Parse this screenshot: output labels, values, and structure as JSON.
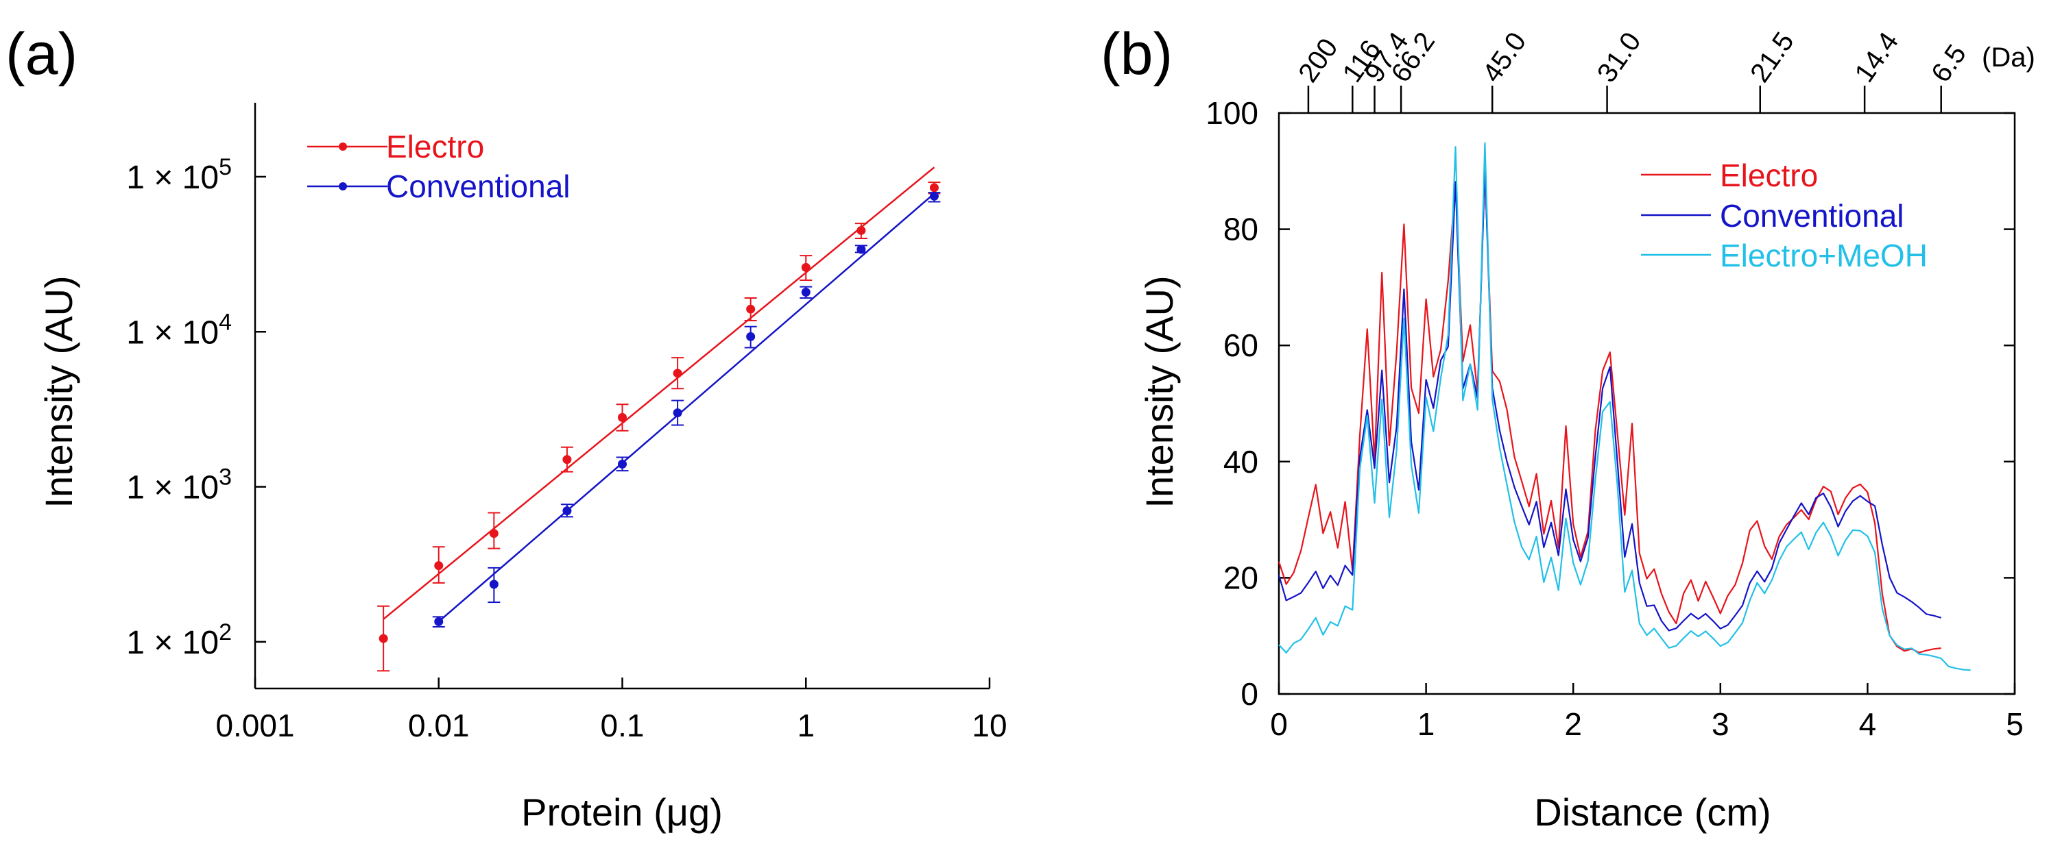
{
  "chart_data": [
    {
      "type": "scatter",
      "panel_label": "(a)",
      "title": "",
      "xlabel": "Protein (μg)",
      "ylabel": "Intensity (AU)",
      "xscale": "log",
      "yscale": "log",
      "xlim": [
        0.001,
        10
      ],
      "ylim": [
        50,
        300000
      ],
      "x_ticks": [
        {
          "value": 0.001,
          "label": "0.001"
        },
        {
          "value": 0.01,
          "label": "0.01"
        },
        {
          "value": 0.1,
          "label": "0.1"
        },
        {
          "value": 1,
          "label": "1"
        },
        {
          "value": 10,
          "label": "10"
        }
      ],
      "y_ticks": [
        {
          "value": 100,
          "mant": "1",
          "times": "×",
          "base": "10",
          "exp": "2"
        },
        {
          "value": 1000,
          "mant": "1",
          "times": "×",
          "base": "10",
          "exp": "3"
        },
        {
          "value": 10000,
          "mant": "1",
          "times": "×",
          "base": "10",
          "exp": "4"
        },
        {
          "value": 100000,
          "mant": "1",
          "times": "×",
          "base": "10",
          "exp": "5"
        }
      ],
      "legend_position": "top-left",
      "series": [
        {
          "name": "Electro",
          "color": "#e8141c",
          "x": [
            0.005,
            0.01,
            0.02,
            0.05,
            0.1,
            0.2,
            0.5,
            1,
            2,
            5
          ],
          "y": [
            105,
            310,
            500,
            1500,
            2800,
            5400,
            14000,
            26000,
            45000,
            85000
          ],
          "err_low": [
            65,
            240,
            400,
            1250,
            2300,
            4300,
            11800,
            21500,
            40000,
            78000
          ],
          "err_high": [
            170,
            410,
            680,
            1800,
            3400,
            6800,
            16500,
            31000,
            50000,
            92000
          ],
          "fit_x": [
            0.005,
            5
          ],
          "fit_y": [
            140,
            115000
          ]
        },
        {
          "name": "Conventional",
          "color": "#1414c8",
          "x": [
            0.01,
            0.02,
            0.05,
            0.1,
            0.2,
            0.5,
            1,
            2,
            5
          ],
          "y": [
            135,
            235,
            700,
            1400,
            3000,
            9300,
            18000,
            34000,
            75000
          ],
          "err_low": [
            125,
            180,
            640,
            1270,
            2500,
            7900,
            16500,
            32500,
            69000
          ],
          "err_high": [
            145,
            300,
            770,
            1550,
            3600,
            10800,
            19500,
            36000,
            79000
          ],
          "fit_x": [
            0.01,
            5
          ],
          "fit_y": [
            135,
            78000
          ]
        }
      ]
    },
    {
      "type": "line",
      "panel_label": "(b)",
      "title": "",
      "xlabel": "Distance (cm)",
      "ylabel": "Intensity (AU)",
      "xlim": [
        0,
        5
      ],
      "ylim": [
        0,
        100
      ],
      "x_ticks": [
        0,
        1,
        2,
        3,
        4,
        5
      ],
      "y_ticks": [
        0,
        20,
        40,
        60,
        80,
        100
      ],
      "top_axis": {
        "unit_label": "(Da)",
        "markers": [
          {
            "pos": 0.2,
            "label": "200"
          },
          {
            "pos": 0.5,
            "label": "116"
          },
          {
            "pos": 0.65,
            "label": "97.4"
          },
          {
            "pos": 0.83,
            "label": "66.2"
          },
          {
            "pos": 1.45,
            "label": "45.0"
          },
          {
            "pos": 2.23,
            "label": "31.0"
          },
          {
            "pos": 3.27,
            "label": "21.5"
          },
          {
            "pos": 3.98,
            "label": "14.4"
          },
          {
            "pos": 4.5,
            "label": "6.5"
          }
        ]
      },
      "legend_position": "top-right",
      "series": [
        {
          "name": "Electro",
          "color": "#e8141c",
          "x": [
            0,
            0.05,
            0.1,
            0.15,
            0.2,
            0.25,
            0.3,
            0.35,
            0.4,
            0.45,
            0.5,
            0.55,
            0.6,
            0.65,
            0.7,
            0.75,
            0.8,
            0.85,
            0.9,
            0.95,
            1.0,
            1.05,
            1.1,
            1.15,
            1.2,
            1.25,
            1.3,
            1.35,
            1.4,
            1.45,
            1.5,
            1.55,
            1.6,
            1.65,
            1.7,
            1.75,
            1.8,
            1.85,
            1.9,
            1.95,
            2.0,
            2.05,
            2.1,
            2.15,
            2.2,
            2.25,
            2.3,
            2.35,
            2.4,
            2.45,
            2.5,
            2.55,
            2.6,
            2.65,
            2.7,
            2.75,
            2.8,
            2.85,
            2.9,
            2.95,
            3.0,
            3.05,
            3.1,
            3.15,
            3.2,
            3.25,
            3.3,
            3.35,
            3.4,
            3.45,
            3.5,
            3.55,
            3.6,
            3.65,
            3.7,
            3.75,
            3.8,
            3.85,
            3.9,
            3.95,
            4.0,
            4.05,
            4.1,
            4.15,
            4.2,
            4.25,
            4.3,
            4.35,
            4.4,
            4.45,
            4.5
          ],
          "y": [
            22,
            18,
            20,
            24,
            30,
            36,
            28,
            32,
            26,
            34,
            22,
            45,
            63,
            40,
            72,
            42,
            58,
            80,
            52,
            48,
            68,
            55,
            60,
            72,
            89,
            58,
            64,
            52,
            90,
            55,
            53,
            48,
            40,
            36,
            32,
            38,
            28,
            34,
            26,
            47,
            30,
            24,
            28,
            45,
            55,
            58,
            44,
            30,
            46,
            24,
            20,
            22,
            18,
            15,
            13,
            18,
            20,
            16,
            19,
            16,
            13,
            16,
            18,
            22,
            28,
            30,
            26,
            24,
            28,
            30,
            31,
            32,
            30,
            33,
            35,
            34,
            30,
            33,
            35,
            36,
            35,
            30,
            18,
            11,
            9,
            8,
            8,
            7,
            7,
            7,
            7
          ]
        },
        {
          "name": "Conventional",
          "color": "#1414c8",
          "x": [
            0,
            0.05,
            0.1,
            0.15,
            0.2,
            0.25,
            0.3,
            0.35,
            0.4,
            0.45,
            0.5,
            0.55,
            0.6,
            0.65,
            0.7,
            0.75,
            0.8,
            0.85,
            0.9,
            0.95,
            1.0,
            1.05,
            1.1,
            1.15,
            1.2,
            1.25,
            1.3,
            1.35,
            1.4,
            1.45,
            1.5,
            1.55,
            1.6,
            1.65,
            1.7,
            1.75,
            1.8,
            1.85,
            1.9,
            1.95,
            2.0,
            2.05,
            2.1,
            2.15,
            2.2,
            2.25,
            2.3,
            2.35,
            2.4,
            2.45,
            2.5,
            2.55,
            2.6,
            2.65,
            2.7,
            2.75,
            2.8,
            2.85,
            2.9,
            2.95,
            3.0,
            3.05,
            3.1,
            3.15,
            3.2,
            3.25,
            3.3,
            3.35,
            3.4,
            3.45,
            3.5,
            3.55,
            3.6,
            3.65,
            3.7,
            3.75,
            3.8,
            3.85,
            3.9,
            3.95,
            4.0,
            4.05,
            4.1,
            4.15,
            4.2,
            4.25,
            4.3,
            4.35,
            4.4,
            4.45,
            4.5
          ],
          "y": [
            20,
            16,
            17,
            18,
            20,
            22,
            19,
            21,
            19,
            22,
            20,
            40,
            48,
            38,
            55,
            36,
            46,
            70,
            44,
            36,
            55,
            50,
            58,
            60,
            88,
            52,
            56,
            50,
            90,
            52,
            45,
            40,
            36,
            33,
            30,
            34,
            26,
            30,
            24,
            35,
            26,
            22,
            26,
            40,
            52,
            56,
            40,
            24,
            30,
            20,
            16,
            16,
            13,
            11,
            11,
            12,
            13,
            12,
            13,
            12,
            11,
            12,
            14,
            16,
            20,
            22,
            20,
            22,
            26,
            28,
            30,
            32,
            30,
            33,
            34,
            32,
            29,
            32,
            34,
            35,
            34,
            33,
            26,
            20,
            17,
            16,
            15,
            14,
            13,
            13,
            13
          ]
        },
        {
          "name": "Electro+MeOH",
          "color": "#22c0e8",
          "x": [
            0,
            0.05,
            0.1,
            0.15,
            0.2,
            0.25,
            0.3,
            0.35,
            0.4,
            0.45,
            0.5,
            0.55,
            0.6,
            0.65,
            0.7,
            0.75,
            0.8,
            0.85,
            0.9,
            0.95,
            1.0,
            1.05,
            1.1,
            1.15,
            1.2,
            1.25,
            1.3,
            1.35,
            1.4,
            1.45,
            1.5,
            1.55,
            1.6,
            1.65,
            1.7,
            1.75,
            1.8,
            1.85,
            1.9,
            1.95,
            2.0,
            2.05,
            2.1,
            2.15,
            2.2,
            2.25,
            2.3,
            2.35,
            2.4,
            2.45,
            2.5,
            2.55,
            2.6,
            2.65,
            2.7,
            2.75,
            2.8,
            2.85,
            2.9,
            2.95,
            3.0,
            3.05,
            3.1,
            3.15,
            3.2,
            3.25,
            3.3,
            3.35,
            3.4,
            3.45,
            3.5,
            3.55,
            3.6,
            3.65,
            3.7,
            3.75,
            3.8,
            3.85,
            3.9,
            3.95,
            4.0,
            4.05,
            4.1,
            4.15,
            4.2,
            4.25,
            4.3,
            4.35,
            4.4,
            4.45,
            4.5,
            4.55,
            4.6,
            4.65,
            4.7
          ],
          "y": [
            8,
            7,
            9,
            10,
            12,
            14,
            11,
            13,
            12,
            15,
            14,
            38,
            47,
            32,
            50,
            30,
            42,
            65,
            40,
            32,
            52,
            46,
            55,
            62,
            94,
            50,
            56,
            48,
            94,
            50,
            42,
            36,
            30,
            26,
            24,
            28,
            20,
            24,
            18,
            30,
            22,
            18,
            22,
            36,
            48,
            50,
            36,
            18,
            22,
            13,
            11,
            12,
            10,
            8,
            8,
            9,
            10,
            9,
            10,
            9,
            8,
            9,
            11,
            13,
            17,
            20,
            18,
            20,
            23,
            25,
            26,
            27,
            24,
            27,
            29,
            27,
            24,
            27,
            29,
            29,
            28,
            25,
            15,
            10,
            8,
            7,
            7,
            6,
            6,
            6,
            6,
            5,
            5,
            5,
            5
          ]
        }
      ]
    }
  ]
}
